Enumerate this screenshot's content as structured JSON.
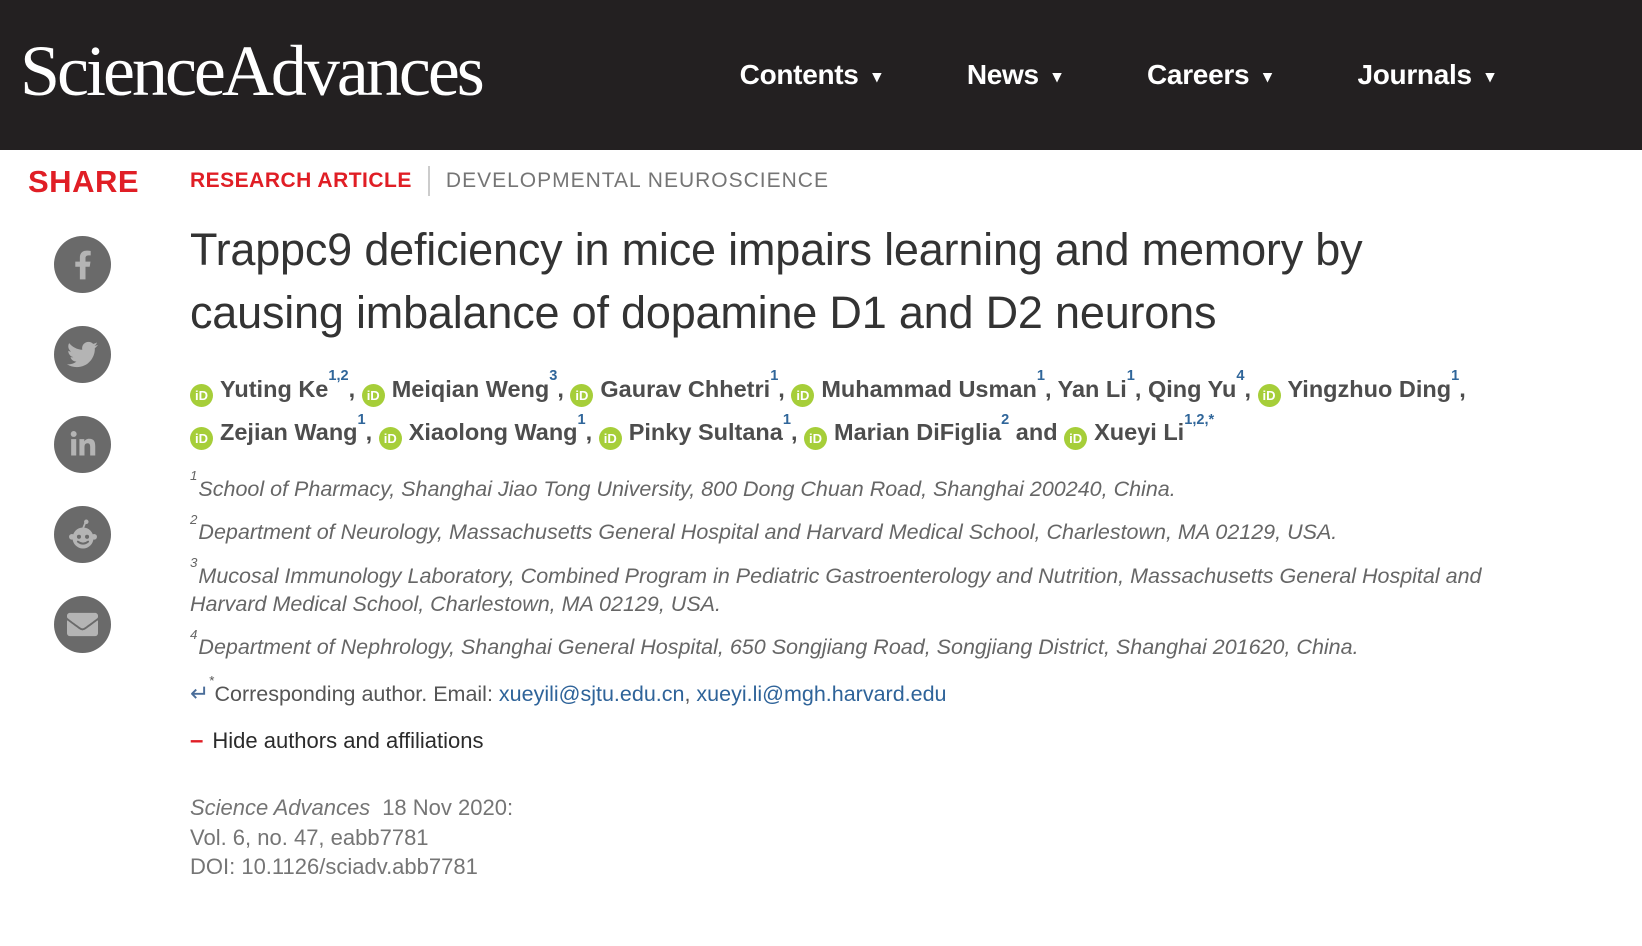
{
  "colors": {
    "accent_red": "#e01e25",
    "orcid_green": "#a6ce39",
    "link_blue": "#2e6399",
    "header_bg": "#232021"
  },
  "header": {
    "logo": "Science Advances",
    "nav": [
      {
        "label": "Contents"
      },
      {
        "label": "News"
      },
      {
        "label": "Careers"
      },
      {
        "label": "Journals"
      }
    ]
  },
  "share": {
    "label": "SHARE",
    "icons": [
      {
        "name": "facebook"
      },
      {
        "name": "twitter"
      },
      {
        "name": "linkedin"
      },
      {
        "name": "reddit"
      },
      {
        "name": "email"
      }
    ]
  },
  "article": {
    "kicker": {
      "type": "RESEARCH ARTICLE",
      "category": "DEVELOPMENTAL NEUROSCIENCE"
    },
    "title": "Trappc9 deficiency in mice impairs learning and memory by causing imbalance of dopamine D1 and D2 neurons",
    "orcid_label": "iD",
    "authors": [
      {
        "orcid": true,
        "name": "Yuting Ke",
        "sup": "1,2",
        "after": ", "
      },
      {
        "orcid": true,
        "name": "Meiqian Weng",
        "sup": "3",
        "after": ", "
      },
      {
        "orcid": true,
        "name": "Gaurav Chhetri",
        "sup": "1",
        "after": ", "
      },
      {
        "orcid": true,
        "name": "Muhammad Usman",
        "sup": "1",
        "after": ", "
      },
      {
        "orcid": false,
        "name": "Yan Li",
        "sup": "1",
        "after": ", "
      },
      {
        "orcid": false,
        "name": "Qing Yu",
        "sup": "4",
        "after": ", "
      },
      {
        "orcid": true,
        "name": "Yingzhuo Ding",
        "sup": "1",
        "after": ", "
      },
      {
        "orcid": true,
        "name": "Zejian Wang",
        "sup": "1",
        "after": ", "
      },
      {
        "orcid": true,
        "name": "Xiaolong Wang",
        "sup": "1",
        "after": ", "
      },
      {
        "orcid": true,
        "name": "Pinky Sultana",
        "sup": "1",
        "after": ", "
      },
      {
        "orcid": true,
        "name": "Marian DiFiglia",
        "sup": "2",
        "after": " and "
      },
      {
        "orcid": true,
        "name": "Xueyi Li",
        "sup": "1,2,*",
        "after": ""
      }
    ],
    "affiliations": [
      {
        "num": "1",
        "text": "School of Pharmacy, Shanghai Jiao Tong University, 800 Dong Chuan Road, Shanghai 200240, China."
      },
      {
        "num": "2",
        "text": "Department of Neurology, Massachusetts General Hospital and Harvard Medical School, Charlestown, MA 02129, USA."
      },
      {
        "num": "3",
        "text": "Mucosal Immunology Laboratory, Combined Program in Pediatric Gastroenterology and Nutrition, Massachusetts General Hospital and Harvard Medical School, Charlestown, MA 02129, USA."
      },
      {
        "num": "4",
        "text": "Department of Nephrology, Shanghai General Hospital, 650 Songjiang Road, Songjiang District, Shanghai 201620, China."
      }
    ],
    "corresponding": {
      "arrow": "↵",
      "star": "*",
      "text": "Corresponding author. Email: ",
      "emails": [
        "xueyili@sjtu.edu.cn",
        "xueyi.li@mgh.harvard.edu"
      ],
      "separator": ", "
    },
    "hide_toggle": {
      "minus": "–",
      "label": "Hide authors and affiliations"
    },
    "citation": {
      "journal": "Science Advances",
      "date": "18 Nov 2020:",
      "volume": "Vol. 6, no. 47, eabb7781",
      "doi": "DOI: 10.1126/sciadv.abb7781"
    }
  }
}
